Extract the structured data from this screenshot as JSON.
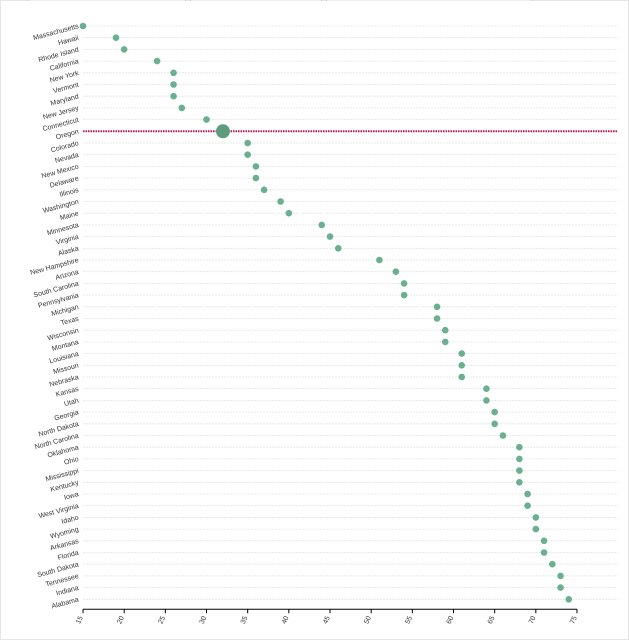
{
  "chart_data": {
    "type": "scatter",
    "title": "",
    "xlabel": "",
    "ylabel": "",
    "xlim": [
      15,
      75
    ],
    "x_ticks": [
      15,
      20,
      25,
      30,
      35,
      40,
      45,
      50,
      55,
      60,
      65,
      70,
      75
    ],
    "grid": "horizontal dashed",
    "highlight": {
      "category": "Oregon",
      "line_color": "#c2185b"
    },
    "point_color": "#6aaf8f",
    "highlight_point_color": "#5e9c7e",
    "categories": [
      "Massachusetts",
      "Hawaii",
      "Rhode Island",
      "California",
      "New York",
      "Vermont",
      "Maryland",
      "New Jersey",
      "Connecticut",
      "Oregon",
      "Colorado",
      "Nevada",
      "New Mexico",
      "Delaware",
      "Illinois",
      "Washington",
      "Maine",
      "Minnesota",
      "Virginia",
      "Alaska",
      "New Hampshire",
      "Arizona",
      "South Carolina",
      "Pennsylvania",
      "Michigan",
      "Texas",
      "Wisconsin",
      "Montana",
      "Louisiana",
      "Missouri",
      "Nebraska",
      "Kansas",
      "Utah",
      "Georgia",
      "North Dakota",
      "North Carolina",
      "Oklahoma",
      "Ohio",
      "Mississippi",
      "Kentucky",
      "Iowa",
      "West Virginia",
      "Idaho",
      "Wyoming",
      "Arkansas",
      "Florida",
      "South Dakota",
      "Tennessee",
      "Indiana",
      "Alabama"
    ],
    "values": [
      15,
      19,
      20,
      24,
      26,
      26,
      26,
      27,
      30,
      32,
      35,
      35,
      36,
      36,
      37,
      39,
      40,
      44,
      45,
      46,
      51,
      53,
      54,
      54,
      58,
      58,
      59,
      59,
      61,
      61,
      61,
      64,
      64,
      65,
      65,
      66,
      68,
      68,
      68,
      68,
      69,
      69,
      70,
      70,
      71,
      71,
      72,
      73,
      73,
      74
    ]
  }
}
